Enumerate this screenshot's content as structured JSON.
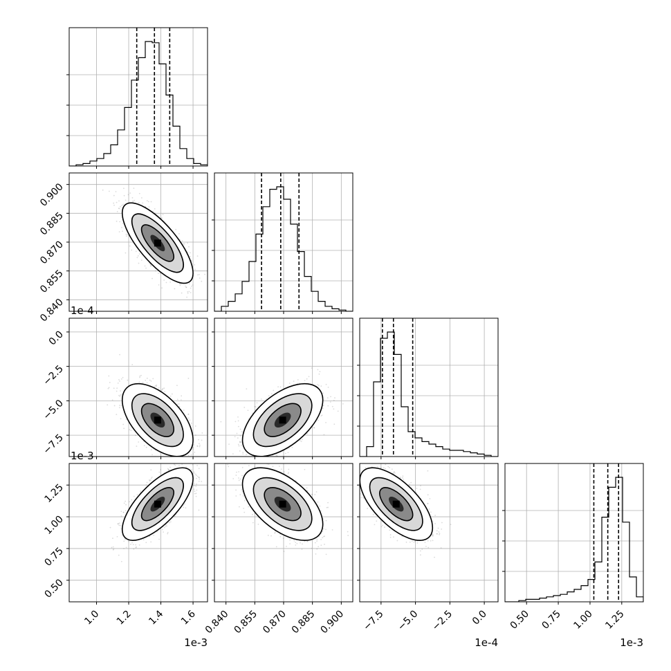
{
  "chart_data": {
    "type": "corner",
    "grid": true,
    "params": [
      {
        "label": "",
        "offset_text": "1e-3",
        "range": [
          0.83,
          1.69
        ],
        "ticks": [
          1.0,
          1.2,
          1.4,
          1.6
        ],
        "tick_labels": [
          "1.0",
          "1.2",
          "1.4",
          "1.6"
        ],
        "mean": 1.38,
        "sd": 0.1,
        "quantiles": [
          1.25,
          1.36,
          1.455
        ]
      },
      {
        "label": "",
        "offset_text": "",
        "range": [
          0.834,
          0.906
        ],
        "ticks": [
          0.84,
          0.855,
          0.87,
          0.885,
          0.9
        ],
        "tick_labels": [
          "0.840",
          "0.855",
          "0.870",
          "0.885",
          "0.900"
        ],
        "mean": 0.8695,
        "sd": 0.0095,
        "quantiles": [
          0.8585,
          0.8685,
          0.878
        ]
      },
      {
        "label": "",
        "offset_text": "1e-4",
        "range": [
          -9.05,
          1.0
        ],
        "ticks": [
          -7.5,
          -5.0,
          -2.5,
          0.0
        ],
        "tick_labels": [
          "−7.5",
          "−5.0",
          "−2.5",
          "0.0"
        ],
        "mean": -6.4,
        "sd": 1.2,
        "quantiles": [
          -7.4,
          -6.6,
          -5.2
        ]
      },
      {
        "label": "",
        "offset_text": "1e-3",
        "range": [
          0.33,
          1.42
        ],
        "ticks": [
          0.5,
          0.75,
          1.0,
          1.25
        ],
        "tick_labels": [
          "0.50",
          "0.75",
          "1.00",
          "1.25"
        ],
        "mean": 1.1,
        "sd": 0.13,
        "quantiles": [
          1.03,
          1.14,
          1.225
        ]
      }
    ],
    "hist_1d": [
      [
        0,
        1,
        2,
        4,
        6,
        10,
        17,
        29,
        47,
        69,
        87,
        100,
        99,
        82,
        57,
        32,
        14,
        6,
        2,
        1
      ],
      [
        0,
        4,
        8,
        14,
        24,
        40,
        62,
        84,
        98,
        100,
        90,
        70,
        48,
        28,
        16,
        8,
        4,
        2,
        1,
        0
      ],
      [
        0,
        8,
        60,
        95,
        100,
        82,
        40,
        20,
        15,
        12,
        10,
        8,
        6,
        5,
        5,
        4,
        3,
        2,
        1,
        0
      ],
      [
        0,
        0,
        1,
        2,
        2,
        3,
        4,
        5,
        6,
        8,
        10,
        13,
        18,
        32,
        68,
        92,
        100,
        64,
        20,
        4
      ]
    ],
    "correlations": [
      [
        1.0,
        -0.75,
        -0.55,
        0.7
      ],
      [
        -0.75,
        1.0,
        0.55,
        -0.55
      ],
      [
        -0.55,
        0.55,
        1.0,
        -0.65
      ],
      [
        0.7,
        -0.55,
        -0.65,
        1.0
      ]
    ],
    "contour_levels_sigma": [
      1,
      1.6,
      2.2
    ]
  }
}
